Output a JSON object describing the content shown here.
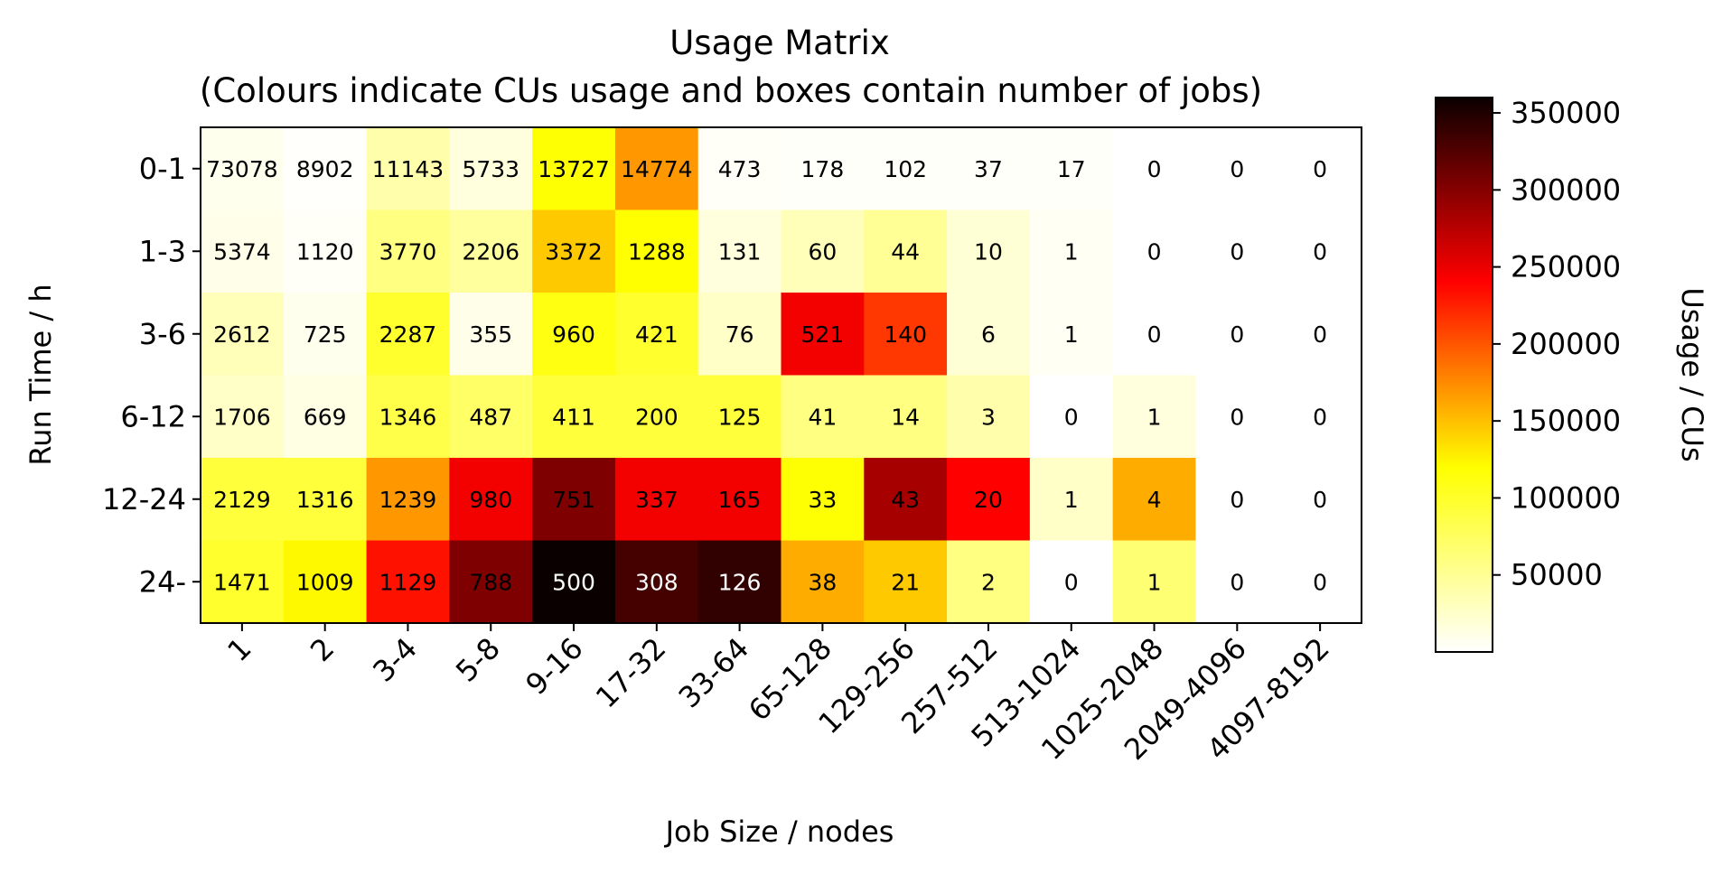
{
  "chart_data": {
    "type": "heatmap",
    "title": "Usage Matrix",
    "subtitle": "(Colours indicate CUs usage and boxes contain number of jobs)",
    "xlabel": "Job Size / nodes",
    "ylabel": "Run Time / h",
    "x_categories": [
      "1",
      "2",
      "3-4",
      "5-8",
      "9-16",
      "17-32",
      "33-64",
      "65-128",
      "129-256",
      "257-512",
      "513-1024",
      "1025-2048",
      "2049-4096",
      "4097-8192"
    ],
    "y_categories": [
      "0-1",
      "1-3",
      "3-6",
      "6-12",
      "12-24",
      "24-"
    ],
    "job_counts": [
      [
        73078,
        8902,
        11143,
        5733,
        13727,
        14774,
        473,
        178,
        102,
        37,
        17,
        0,
        0,
        0
      ],
      [
        5374,
        1120,
        3770,
        2206,
        3372,
        1288,
        131,
        60,
        44,
        10,
        1,
        0,
        0,
        0
      ],
      [
        2612,
        725,
        2287,
        355,
        960,
        421,
        76,
        521,
        140,
        6,
        1,
        0,
        0,
        0
      ],
      [
        1706,
        669,
        1346,
        487,
        411,
        200,
        125,
        41,
        14,
        3,
        0,
        1,
        0,
        0
      ],
      [
        2129,
        1316,
        1239,
        980,
        751,
        337,
        165,
        33,
        43,
        20,
        1,
        4,
        0,
        0
      ],
      [
        1471,
        1009,
        1129,
        788,
        500,
        308,
        126,
        38,
        21,
        2,
        0,
        1,
        0,
        0
      ]
    ],
    "usage_cus": [
      [
        6000,
        1000,
        30000,
        12000,
        90000,
        150000,
        3000,
        2000,
        2000,
        2000,
        2000,
        0,
        0,
        0
      ],
      [
        8000,
        3000,
        45000,
        35000,
        125000,
        95000,
        12000,
        25000,
        38000,
        15000,
        4000,
        0,
        0,
        0
      ],
      [
        25000,
        6000,
        75000,
        8000,
        85000,
        75000,
        20000,
        240000,
        200000,
        15000,
        4000,
        0,
        0,
        0
      ],
      [
        20000,
        10000,
        65000,
        55000,
        70000,
        70000,
        70000,
        45000,
        45000,
        30000,
        0,
        12000,
        0,
        0
      ],
      [
        70000,
        70000,
        150000,
        240000,
        300000,
        240000,
        240000,
        90000,
        280000,
        230000,
        20000,
        140000,
        0,
        0
      ],
      [
        75000,
        100000,
        220000,
        300000,
        360000,
        330000,
        340000,
        140000,
        125000,
        45000,
        0,
        50000,
        0,
        0
      ]
    ],
    "colorbar": {
      "label": "Usage / CUs",
      "colormap": "hot_r",
      "range": [
        0,
        360000
      ],
      "ticks": [
        50000,
        100000,
        150000,
        200000,
        250000,
        300000,
        350000
      ],
      "tick_labels": [
        "50000",
        "100000",
        "150000",
        "200000",
        "250000",
        "300000",
        "350000"
      ]
    },
    "grid": false
  }
}
